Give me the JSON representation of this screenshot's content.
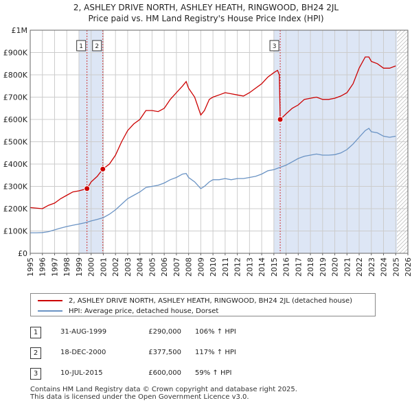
{
  "title_line1": "2, ASHLEY DRIVE NORTH, ASHLEY HEATH, RINGWOOD, BH24 2JL",
  "title_line2": "Price paid vs. HM Land Registry's House Price Index (HPI)",
  "colors": {
    "property": "#cc0000",
    "hpi": "#6a93c4",
    "shade": "#dde6f5",
    "grid": "#cccccc",
    "vline": "#cc3333"
  },
  "chart_data": {
    "type": "line",
    "title": "2, ASHLEY DRIVE NORTH, ASHLEY HEATH, RINGWOOD, BH24 2JL — Price paid vs. HM Land Registry's House Price Index (HPI)",
    "xlabel": "",
    "ylabel": "",
    "xlim": [
      1995,
      2026
    ],
    "ylim": [
      0,
      1000000
    ],
    "x_ticks": [
      1995,
      1996,
      1997,
      1998,
      1999,
      2000,
      2001,
      2002,
      2003,
      2004,
      2005,
      2006,
      2007,
      2008,
      2009,
      2010,
      2011,
      2012,
      2013,
      2014,
      2015,
      2016,
      2017,
      2018,
      2019,
      2020,
      2021,
      2022,
      2023,
      2024,
      2025,
      2026
    ],
    "y_ticks": [
      {
        "value": 0,
        "label": "£0"
      },
      {
        "value": 100000,
        "label": "£100K"
      },
      {
        "value": 200000,
        "label": "£200K"
      },
      {
        "value": 300000,
        "label": "£300K"
      },
      {
        "value": 400000,
        "label": "£400K"
      },
      {
        "value": 500000,
        "label": "£500K"
      },
      {
        "value": 600000,
        "label": "£600K"
      },
      {
        "value": 700000,
        "label": "£700K"
      },
      {
        "value": 800000,
        "label": "£800K"
      },
      {
        "value": 900000,
        "label": "£900K"
      },
      {
        "value": 1000000,
        "label": "£1M"
      }
    ],
    "shaded_ranges": [
      [
        1999.0,
        2001.0
      ],
      [
        2015.0,
        2025.1
      ]
    ],
    "hatched_range": [
      2025.1,
      2026
    ],
    "series": [
      {
        "name": "2, ASHLEY DRIVE NORTH, ASHLEY HEATH, RINGWOOD, BH24 2JL (detached house)",
        "x": [
          1995.0,
          1996.0,
          1996.5,
          1997.0,
          1997.5,
          1998.0,
          1998.5,
          1999.0,
          1999.66,
          2000.0,
          2000.5,
          2000.96,
          2001.5,
          2002.0,
          2002.5,
          2003.0,
          2003.5,
          2004.0,
          2004.5,
          2005.0,
          2005.5,
          2006.0,
          2006.5,
          2007.0,
          2007.5,
          2007.8,
          2008.0,
          2008.5,
          2009.0,
          2009.3,
          2009.7,
          2010.0,
          2010.5,
          2011.0,
          2011.5,
          2012.0,
          2012.5,
          2013.0,
          2013.5,
          2014.0,
          2014.5,
          2015.0,
          2015.3,
          2015.45,
          2015.52,
          2016.0,
          2016.5,
          2017.0,
          2017.5,
          2018.0,
          2018.5,
          2019.0,
          2019.5,
          2020.0,
          2020.5,
          2021.0,
          2021.5,
          2022.0,
          2022.5,
          2022.8,
          2023.0,
          2023.5,
          2024.0,
          2024.5,
          2025.0
        ],
        "values": [
          205000,
          200000,
          215000,
          225000,
          245000,
          260000,
          275000,
          280000,
          290000,
          320000,
          345000,
          377500,
          400000,
          440000,
          500000,
          550000,
          580000,
          600000,
          640000,
          640000,
          635000,
          650000,
          690000,
          720000,
          750000,
          770000,
          740000,
          700000,
          620000,
          640000,
          690000,
          700000,
          710000,
          720000,
          715000,
          710000,
          705000,
          720000,
          740000,
          760000,
          790000,
          810000,
          820000,
          800000,
          600000,
          625000,
          650000,
          665000,
          690000,
          695000,
          700000,
          690000,
          690000,
          695000,
          705000,
          720000,
          760000,
          830000,
          880000,
          880000,
          860000,
          850000,
          830000,
          830000,
          840000
        ]
      },
      {
        "name": "HPI: Average price, detached house, Dorset",
        "x": [
          1995.0,
          1995.5,
          1996.0,
          1996.5,
          1997.0,
          1997.5,
          1998.0,
          1998.5,
          1999.0,
          1999.5,
          2000.0,
          2000.5,
          2001.0,
          2001.5,
          2002.0,
          2002.5,
          2003.0,
          2003.5,
          2004.0,
          2004.5,
          2005.0,
          2005.5,
          2006.0,
          2006.5,
          2007.0,
          2007.5,
          2007.8,
          2008.0,
          2008.5,
          2009.0,
          2009.3,
          2009.7,
          2010.0,
          2010.5,
          2011.0,
          2011.5,
          2012.0,
          2012.5,
          2013.0,
          2013.5,
          2014.0,
          2014.5,
          2015.0,
          2015.5,
          2016.0,
          2016.5,
          2017.0,
          2017.5,
          2018.0,
          2018.5,
          2019.0,
          2019.5,
          2020.0,
          2020.5,
          2021.0,
          2021.5,
          2022.0,
          2022.5,
          2022.8,
          2023.0,
          2023.5,
          2024.0,
          2024.5,
          2025.0
        ],
        "values": [
          92000,
          92000,
          93000,
          97000,
          105000,
          113000,
          120000,
          126000,
          131000,
          137000,
          145000,
          152000,
          160000,
          175000,
          195000,
          220000,
          245000,
          260000,
          275000,
          295000,
          300000,
          305000,
          315000,
          330000,
          340000,
          355000,
          358000,
          340000,
          320000,
          290000,
          300000,
          320000,
          330000,
          330000,
          335000,
          330000,
          335000,
          335000,
          340000,
          345000,
          355000,
          370000,
          375000,
          385000,
          395000,
          410000,
          425000,
          435000,
          440000,
          445000,
          440000,
          440000,
          442000,
          450000,
          465000,
          490000,
          520000,
          550000,
          560000,
          545000,
          540000,
          525000,
          520000,
          525000
        ]
      }
    ],
    "transactions": [
      {
        "num": "1",
        "x": 1999.66,
        "price": 290000
      },
      {
        "num": "2",
        "x": 2000.96,
        "price": 377500
      },
      {
        "num": "3",
        "x": 2015.52,
        "price": 600000
      }
    ]
  },
  "legend": {
    "property_label": "2, ASHLEY DRIVE NORTH, ASHLEY HEATH, RINGWOOD, BH24 2JL (detached house)",
    "hpi_label": "HPI: Average price, detached house, Dorset"
  },
  "transactions_table": [
    {
      "num": "1",
      "date": "31-AUG-1999",
      "price": "£290,000",
      "hpi": "106% ↑ HPI"
    },
    {
      "num": "2",
      "date": "18-DEC-2000",
      "price": "£377,500",
      "hpi": "117% ↑ HPI"
    },
    {
      "num": "3",
      "date": "10-JUL-2015",
      "price": "£600,000",
      "hpi": "59% ↑ HPI"
    }
  ],
  "footer": {
    "line1": "Contains HM Land Registry data © Crown copyright and database right 2025.",
    "line2": "This data is licensed under the Open Government Licence v3.0."
  }
}
